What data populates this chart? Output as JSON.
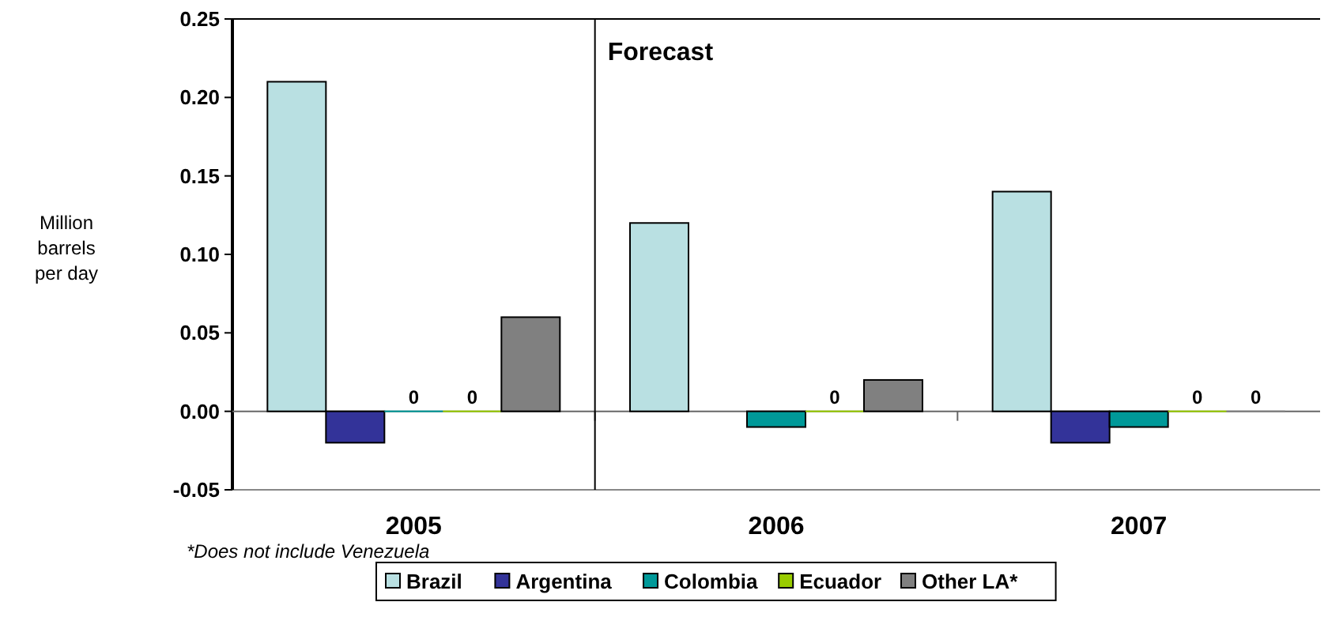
{
  "chart_data": {
    "type": "bar",
    "ylabel": "Million barrels per day",
    "categories": [
      "2005",
      "2006",
      "2007"
    ],
    "series": [
      {
        "name": "Brazil",
        "color": "#b9e0e2",
        "values": [
          0.21,
          0.12,
          0.14
        ]
      },
      {
        "name": "Argentina",
        "color": "#333399",
        "values": [
          -0.02,
          null,
          -0.02
        ]
      },
      {
        "name": "Colombia",
        "color": "#009999",
        "values": [
          0,
          -0.01,
          -0.01
        ],
        "value_labels": [
          "0",
          null,
          null
        ]
      },
      {
        "name": "Ecuador",
        "color": "#99cc00",
        "values": [
          0,
          0,
          0
        ],
        "value_labels": [
          "0",
          "0",
          "0"
        ]
      },
      {
        "name": "Other LA*",
        "color": "#808080",
        "values": [
          0.06,
          0.02,
          0
        ],
        "value_labels": [
          null,
          null,
          "0"
        ]
      }
    ],
    "ylim": [
      -0.05,
      0.25
    ],
    "yticks": [
      {
        "value": -0.05,
        "label": "-0.05"
      },
      {
        "value": 0,
        "label": "0.00"
      },
      {
        "value": 0.05,
        "label": "0.05"
      },
      {
        "value": 0.1,
        "label": "0.10"
      },
      {
        "value": 0.15,
        "label": "0.15"
      },
      {
        "value": 0.2,
        "label": "0.20"
      },
      {
        "value": 0.25,
        "label": "0.25"
      }
    ],
    "ref_lines": [
      {
        "axis": "x",
        "value": "2006",
        "label": "Forecast"
      }
    ],
    "annotations": [
      "*Does not include Venezuela"
    ],
    "legend": "bottom",
    "grid": false
  }
}
